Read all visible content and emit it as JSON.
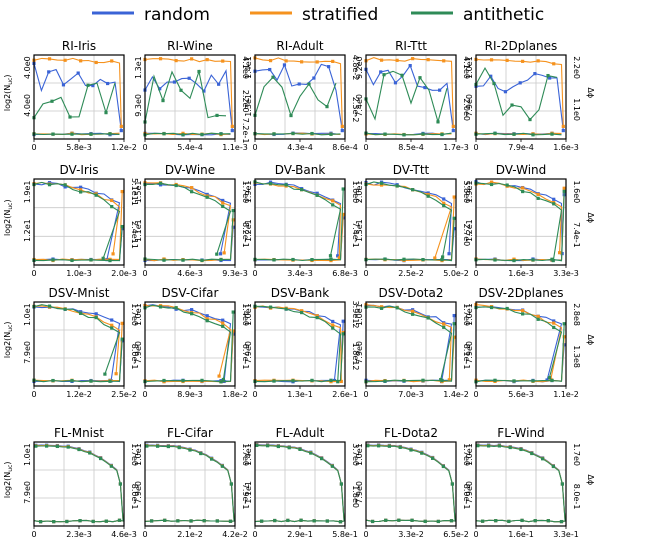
{
  "legend": [
    {
      "label": "random",
      "color": "#3a63d6"
    },
    {
      "label": "stratified",
      "color": "#f5921e"
    },
    {
      "label": "antithetic",
      "color": "#2e8b57"
    }
  ],
  "left_ylabel_text": "log2(N",
  "left_ylabel_sub": "uc",
  "left_ylabel_close": ")",
  "right_ylabel_text": "Δϕ",
  "chart_data": [
    {
      "type": "line",
      "title": "RI-Iris",
      "xticks": [
        "0",
        "5.8e-3",
        "1.2e-2"
      ],
      "yleft": [
        "4.0e0",
        "4.0e0"
      ],
      "yright": []
    },
    {
      "type": "line",
      "title": "RI-Wine",
      "xticks": [
        "0",
        "5.4e-4",
        "1.1e-3"
      ],
      "yleft": [
        "1.3e1",
        "9.3e0"
      ],
      "yright": [
        "4.1e0",
        "2.2e0",
        "7.2e-1"
      ]
    },
    {
      "type": "line",
      "title": "RI-Adult",
      "xticks": [
        "0",
        "4.3e-4",
        "8.6e-4"
      ],
      "yleft": [
        "1.4e1",
        "1.3e1"
      ],
      "yright": [
        "4.8e-2",
        "2.3e-2"
      ]
    },
    {
      "type": "line",
      "title": "RI-Ttt",
      "xticks": [
        "0",
        "8.5e-4",
        "1.7e-3"
      ],
      "yleft": [
        "9.2e0",
        "7.4e0"
      ],
      "yright": [
        "4.1e0",
        "2.0e0"
      ]
    },
    {
      "type": "line",
      "title": "RI-2Dplanes",
      "xticks": [
        "0",
        "7.9e-4",
        "1.6e-3"
      ],
      "yleft": [
        "1.0e1",
        "7.9e0"
      ],
      "yright": [
        "2.2e0",
        "1.1e0"
      ]
    },
    {
      "type": "line",
      "title": "DV-Iris",
      "xticks": [
        "0",
        "1.0e-3",
        "2.0e-3"
      ],
      "yleft": [
        "1.9e1",
        "1.2e1"
      ],
      "yright": [
        "5.1e11",
        "2.4e11"
      ]
    },
    {
      "type": "line",
      "title": "DV-Wine",
      "xticks": [
        "0",
        "4.6e-3",
        "9.3e-3"
      ],
      "yleft": [
        "1.5e1",
        "1.1e1"
      ],
      "yright": [
        "1.7e0",
        "8.2e-1"
      ]
    },
    {
      "type": "line",
      "title": "DV-Bank",
      "xticks": [
        "0",
        "3.4e-3",
        "6.8e-3"
      ],
      "yleft": [
        "1.9e1",
        "1.2e1"
      ],
      "yright": [
        "1.6e0",
        "7.4e-1"
      ]
    },
    {
      "type": "line",
      "title": "DV-Ttt",
      "xticks": [
        "0",
        "2.5e-2",
        "5.0e-2"
      ],
      "yleft": [
        "2.0e1",
        "1.3e1"
      ],
      "yright": [
        "5.8e0",
        "2.7e0"
      ]
    },
    {
      "type": "line",
      "title": "DV-Wind",
      "xticks": [
        "0",
        "1.6e-3",
        "3.3e-3"
      ],
      "yleft": [
        "1.9e1",
        "1.2e1"
      ],
      "yright": [
        "1.6e0",
        "7.4e-1"
      ]
    },
    {
      "type": "line",
      "title": "DSV-Mnist",
      "xticks": [
        "0",
        "1.2e-2",
        "2.5e-2"
      ],
      "yleft": [
        "1.0e1",
        "7.9e0"
      ],
      "yright": [
        "1.7e0",
        "8.0e-1"
      ]
    },
    {
      "type": "line",
      "title": "DSV-Cifar",
      "xticks": [
        "0",
        "8.9e-3",
        "1.8e-2"
      ],
      "yleft": [
        "1.0e1",
        "7.9e0"
      ],
      "yright": [
        "1.4e0",
        "6.7e-1"
      ]
    },
    {
      "type": "line",
      "title": "DSV-Bank",
      "xticks": [
        "0",
        "1.3e-1",
        "2.6e-1"
      ],
      "yleft": [
        "1.0e1",
        "7.9e0"
      ],
      "yright": [
        "3.9e12",
        "1.8e12"
      ]
    },
    {
      "type": "line",
      "title": "DSV-Dota2",
      "xticks": [
        "0",
        "7.0e-3",
        "1.4e-2"
      ],
      "yleft": [
        "1.0e1",
        "7.9e0"
      ],
      "yright": [
        "1.7e0",
        "8.1e-1"
      ]
    },
    {
      "type": "line",
      "title": "DSV-2Dplanes",
      "xticks": [
        "0",
        "5.6e-3",
        "1.1e-2"
      ],
      "yleft": [
        "1.0e1",
        "7.9e0"
      ],
      "yright": [
        "2.8e8",
        "1.3e8"
      ]
    },
    {
      "type": "line",
      "title": "FL-Mnist",
      "xticks": [
        "0",
        "2.3e-3",
        "4.6e-3"
      ],
      "yleft": [
        "1.0e1",
        "7.9e0"
      ],
      "yright": [
        "1.7e0",
        "8.0e-1"
      ]
    },
    {
      "type": "line",
      "title": "FL-Cifar",
      "xticks": [
        "0",
        "2.1e-2",
        "4.2e-2"
      ],
      "yleft": [
        "1.0e1",
        "7.9e0"
      ],
      "yright": [
        "1.7e0",
        "7.9e-1"
      ]
    },
    {
      "type": "line",
      "title": "FL-Adult",
      "xticks": [
        "0",
        "2.9e-1",
        "5.8e-1"
      ],
      "yleft": [
        "1.4e1",
        "1.1e1"
      ],
      "yright": [
        "3.7e0",
        "1.8e0"
      ]
    },
    {
      "type": "line",
      "title": "FL-Dota2",
      "xticks": [
        "0",
        "3.3e-2",
        "6.5e-2"
      ],
      "yleft": [
        "1.0e1",
        "7.9e0"
      ],
      "yright": [
        "1.7e0",
        "8.0e-1"
      ]
    },
    {
      "type": "line",
      "title": "FL-Wind",
      "xticks": [
        "0",
        "1.6e-1",
        "3.3e-1"
      ],
      "yleft": [
        "1.0e1",
        "7.9e0"
      ],
      "yright": [
        "1.7e0",
        "8.0e-1"
      ]
    }
  ]
}
